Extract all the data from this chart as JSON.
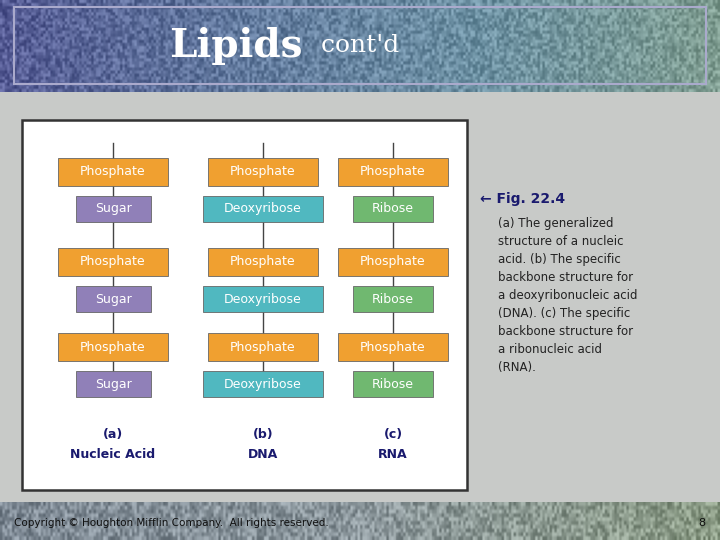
{
  "title_bold": "Lipids",
  "title_regular": " cont'd",
  "header_color_left": "#4a5a9e",
  "header_color_mid": "#6a8ab8",
  "header_color_right": "#88b888",
  "slide_bg": "#c8cac8",
  "outer_border_color": "#888888",
  "white_box_color": "#ffffff",
  "orange_color": "#f0a030",
  "purple_color": "#9080b8",
  "cyan_color": "#50b8c0",
  "green_color": "#70b870",
  "dark_blue": "#1a1a6e",
  "footer_color_left": "#8090a0",
  "footer_color_right": "#90a888",
  "copyright_text": "Copyright © Houghton Mifflin Company.  All rights reserved.",
  "page_number": "8",
  "fig_arrow": "← Fig. 22.4",
  "fig_caption": "(a) The generalized\nstructure of a nucleic\nacid. (b) The specific\nbackbone structure for\na deoxyribonucleic acid\n(DNA). (c) The specific\nbackbone structure for\na ribonucleic acid\n(RNA)."
}
